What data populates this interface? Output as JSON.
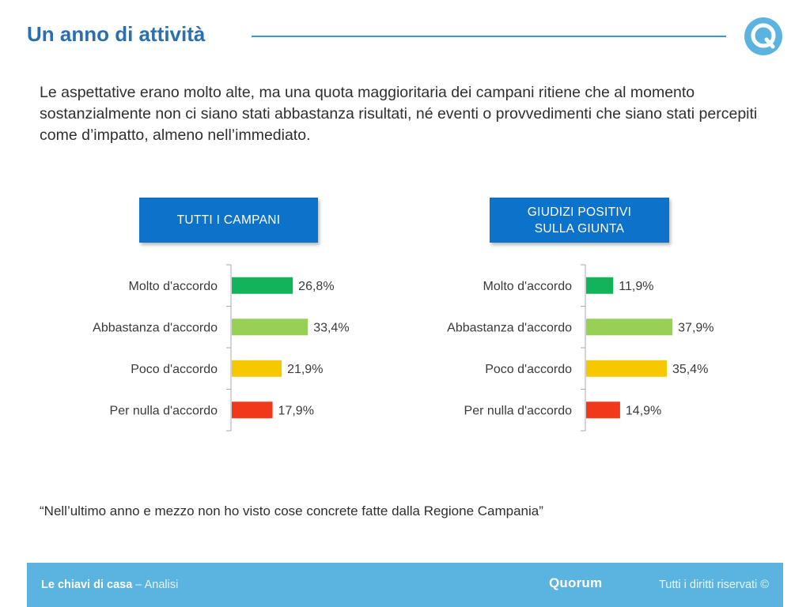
{
  "header": {
    "title": "Un anno di attività",
    "logo_icon": "quorum-q-logo-icon",
    "accent_color": "#2a6fb0"
  },
  "intro_text": "Le aspettative erano molto alte, ma una quota maggioritaria dei campani ritiene che al momento sostanzialmente non ci siano stati abbastanza risultati, né eventi o provvedimenti che siano stati percepiti come d’impatto, almeno nell’immediato.",
  "chart_data": [
    {
      "type": "bar",
      "orientation": "horizontal",
      "title": "TUTTI I CAMPANI",
      "categories": [
        "Molto d'accordo",
        "Abbastanza d'accordo",
        "Poco d'accordo",
        "Per nulla d'accordo"
      ],
      "values": [
        26.8,
        33.4,
        21.9,
        17.9
      ],
      "value_labels": [
        "26,8%",
        "33,4%",
        "21,9%",
        "17,9%"
      ],
      "colors": [
        "#12b35b",
        "#98d056",
        "#f5c800",
        "#f0391a"
      ],
      "unit": "%",
      "grid": false
    },
    {
      "type": "bar",
      "orientation": "horizontal",
      "title": "GIUDIZI POSITIVI\nSULLA GIUNTA",
      "categories": [
        "Molto d'accordo",
        "Abbastanza d'accordo",
        "Poco d'accordo",
        "Per nulla d'accordo"
      ],
      "values": [
        11.9,
        37.9,
        35.4,
        14.9
      ],
      "value_labels": [
        "11,9%",
        "37,9%",
        "35,4%",
        "14,9%"
      ],
      "colors": [
        "#12b35b",
        "#98d056",
        "#f5c800",
        "#f0391a"
      ],
      "unit": "%",
      "grid": false
    }
  ],
  "quote": "“Nell’ultimo anno e mezzo non ho visto cose concrete fatte dalla Regione Campania”",
  "footer": {
    "left_strong": "Le chiavi di casa",
    "left_rest": " – Analisi",
    "brand": "Quorum",
    "rights": "Tutti i diritti riservati ©",
    "background": "#5bb4e0"
  }
}
